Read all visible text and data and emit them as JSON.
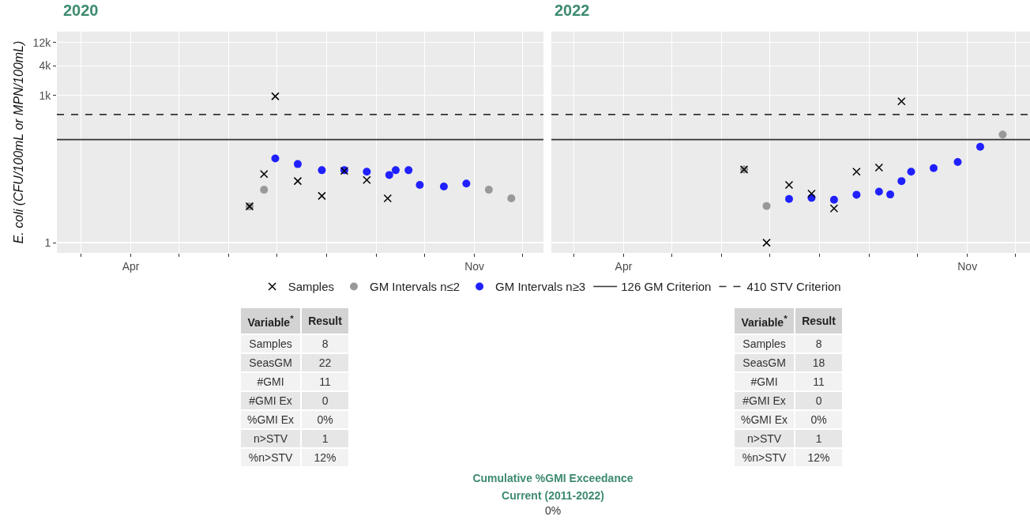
{
  "chart_data": [
    {
      "type": "scatter",
      "title": "2020",
      "ylabel": "E. coli (CFU/100mL or MPN/100mL)",
      "log": true,
      "grid": true,
      "legend": "bottom",
      "xlim": [
        "--02-14",
        "--12-14"
      ],
      "xticks": [
        {
          "value": "--03-01",
          "label": null
        },
        {
          "value": "--04-01",
          "label": "Apr"
        },
        {
          "value": "--05-01",
          "label": null
        },
        {
          "value": "--06-01",
          "label": null
        },
        {
          "value": "--07-01",
          "label": null
        },
        {
          "value": "--08-01",
          "label": null
        },
        {
          "value": "--09-01",
          "label": null
        },
        {
          "value": "--10-01",
          "label": null
        },
        {
          "value": "--11-01",
          "label": "Nov"
        },
        {
          "value": "--12-01",
          "label": null
        }
      ],
      "ylim": [
        0.62,
        20000
      ],
      "yticks": [
        1,
        {
          "value": 1000,
          "label": "1k"
        },
        {
          "value": 4000,
          "label": "4k"
        },
        {
          "value": 12000,
          "label": "12k"
        }
      ],
      "ref_lines": [
        {
          "axis": "y",
          "value": 126,
          "label": "126 GM Criterion",
          "color": "#333333",
          "line_style": "solid"
        },
        {
          "axis": "y",
          "value": 410,
          "label": "410 STV Criterion",
          "color": "#333333",
          "line_style": "dashed"
        }
      ],
      "series": [
        {
          "name": "Samples",
          "type": "scatter",
          "marker": "cross",
          "color": "#000000",
          "x": [
            "--06-14",
            "--06-23",
            "--06-30",
            "--07-14",
            "--07-29",
            "--08-12",
            "--08-26",
            "--09-08"
          ],
          "values": [
            5.5,
            25,
            960,
            18,
            9,
            29,
            19,
            8
          ]
        },
        {
          "name": "GM Intervals n≤2",
          "type": "scatter",
          "marker": "circle",
          "color": "#999999",
          "x": [
            "--06-14",
            "--06-23",
            "--11-10",
            "--11-24"
          ],
          "values": [
            5.5,
            12,
            12,
            8
          ]
        },
        {
          "name": "GM Intervals n≥3",
          "type": "scatter",
          "marker": "circle",
          "color": "#2020ff",
          "x": [
            "--06-30",
            "--07-14",
            "--07-29",
            "--08-12",
            "--08-26",
            "--09-09",
            "--09-13",
            "--09-21",
            "--09-28",
            "--10-13",
            "--10-27"
          ],
          "values": [
            52,
            40,
            30,
            30,
            28,
            24,
            30,
            30,
            15,
            14,
            16
          ]
        }
      ]
    },
    {
      "type": "scatter",
      "title": "2022",
      "log": true,
      "grid": true,
      "tick_labels": "x",
      "xlim": [
        "--02-15",
        "--12-10"
      ],
      "yticks": [
        1,
        1000,
        4000,
        12000
      ],
      "xticks": [
        {
          "value": "--03-01",
          "label": null
        },
        {
          "value": "--04-01",
          "label": "Apr"
        },
        {
          "value": "--05-01",
          "label": null
        },
        {
          "value": "--06-01",
          "label": null
        },
        {
          "value": "--07-01",
          "label": null
        },
        {
          "value": "--08-01",
          "label": null
        },
        {
          "value": "--09-01",
          "label": null
        },
        {
          "value": "--10-01",
          "label": null
        },
        {
          "value": "--11-01",
          "label": "Nov"
        },
        {
          "value": "--12-01",
          "label": null
        }
      ],
      "ylim": [
        0.62,
        20000
      ],
      "ref_lines": [
        {
          "axis": "y",
          "value": 126,
          "color": "#333333",
          "line_style": "solid"
        },
        {
          "axis": "y",
          "value": 410,
          "color": "#333333",
          "line_style": "dashed"
        }
      ],
      "series": [
        {
          "type": "scatter",
          "marker": "cross",
          "color": "#000000",
          "x": [
            "--06-15",
            "--06-29",
            "--07-13",
            "--07-27",
            "--08-10",
            "--08-24",
            "--09-07",
            "--09-21"
          ],
          "values": [
            31,
            1,
            15,
            10,
            5,
            28,
            34,
            760
          ]
        },
        {
          "type": "scatter",
          "marker": "circle",
          "color": "#999999",
          "x": [
            "--06-15",
            "--06-29",
            "--11-23"
          ],
          "values": [
            31,
            5.6,
            160
          ]
        },
        {
          "type": "scatter",
          "marker": "circle",
          "color": "#2020ff",
          "x": [
            "--07-13",
            "--07-27",
            "--08-10",
            "--08-24",
            "--09-07",
            "--09-14",
            "--09-21",
            "--09-27",
            "--10-11",
            "--10-26",
            "--11-09"
          ],
          "values": [
            7.8,
            8.2,
            7.5,
            9.5,
            11,
            9.6,
            18,
            28,
            33,
            44,
            90
          ]
        }
      ]
    },
    {
      "type": "other",
      "annotations": [
        "Variable$^{*}$",
        "Result"
      ],
      "categories": [
        "Samples",
        "SeasGM",
        "#GMI",
        "#GMI Ex",
        "%GMI Ex",
        "n>STV",
        "%n>STV"
      ],
      "value_labels": [
        "8",
        "22",
        "11",
        "0",
        "0%",
        "1",
        "12%"
      ]
    },
    {
      "type": "other",
      "annotations": [
        "Variable$^{*}$",
        "Result"
      ],
      "categories": [
        "Samples",
        "SeasGM",
        "#GMI",
        "#GMI Ex",
        "%GMI Ex",
        "n>STV",
        "%n>STV"
      ],
      "value_labels": [
        "8",
        "18",
        "11",
        "0",
        "0%",
        "1",
        "12%"
      ]
    },
    {
      "type": "other",
      "title": "Cumulative %GMI Exceedance",
      "subtitle": "Current (2011-2022)",
      "annotations": [
        "0%"
      ]
    }
  ]
}
